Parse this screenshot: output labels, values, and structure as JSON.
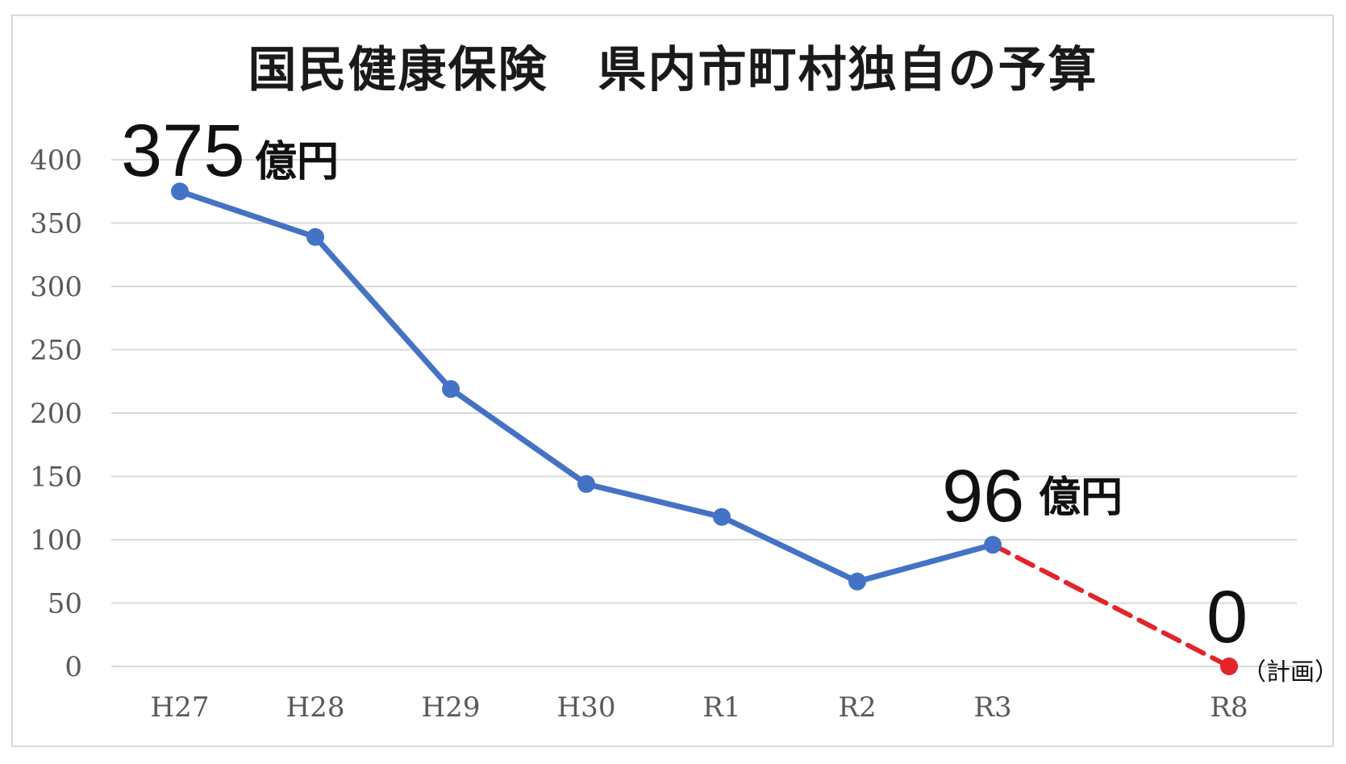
{
  "chart_data": {
    "type": "line",
    "title": "国民健康保険　県内市町村独自の予算",
    "categories": [
      "H27",
      "H28",
      "H29",
      "H30",
      "R1",
      "R2",
      "R3",
      "R8"
    ],
    "series": [
      {
        "values": [
          375,
          339,
          219,
          144,
          118,
          67,
          96,
          null
        ],
        "color": "#4472c4",
        "style": "solid"
      },
      {
        "values": [
          null,
          null,
          null,
          null,
          null,
          null,
          96,
          0
        ],
        "color": "#e3242b",
        "style": "dashed"
      }
    ],
    "ylim": [
      0,
      400
    ],
    "yticks": [
      "0",
      "50",
      "100",
      "150",
      "200",
      "250",
      "300",
      "350",
      "400"
    ],
    "grid": true,
    "annotations": [
      {
        "number": "375",
        "unit": "億円"
      },
      {
        "number": "96",
        "unit": "億円"
      },
      {
        "number": "0",
        "note": "（計画）"
      }
    ]
  }
}
